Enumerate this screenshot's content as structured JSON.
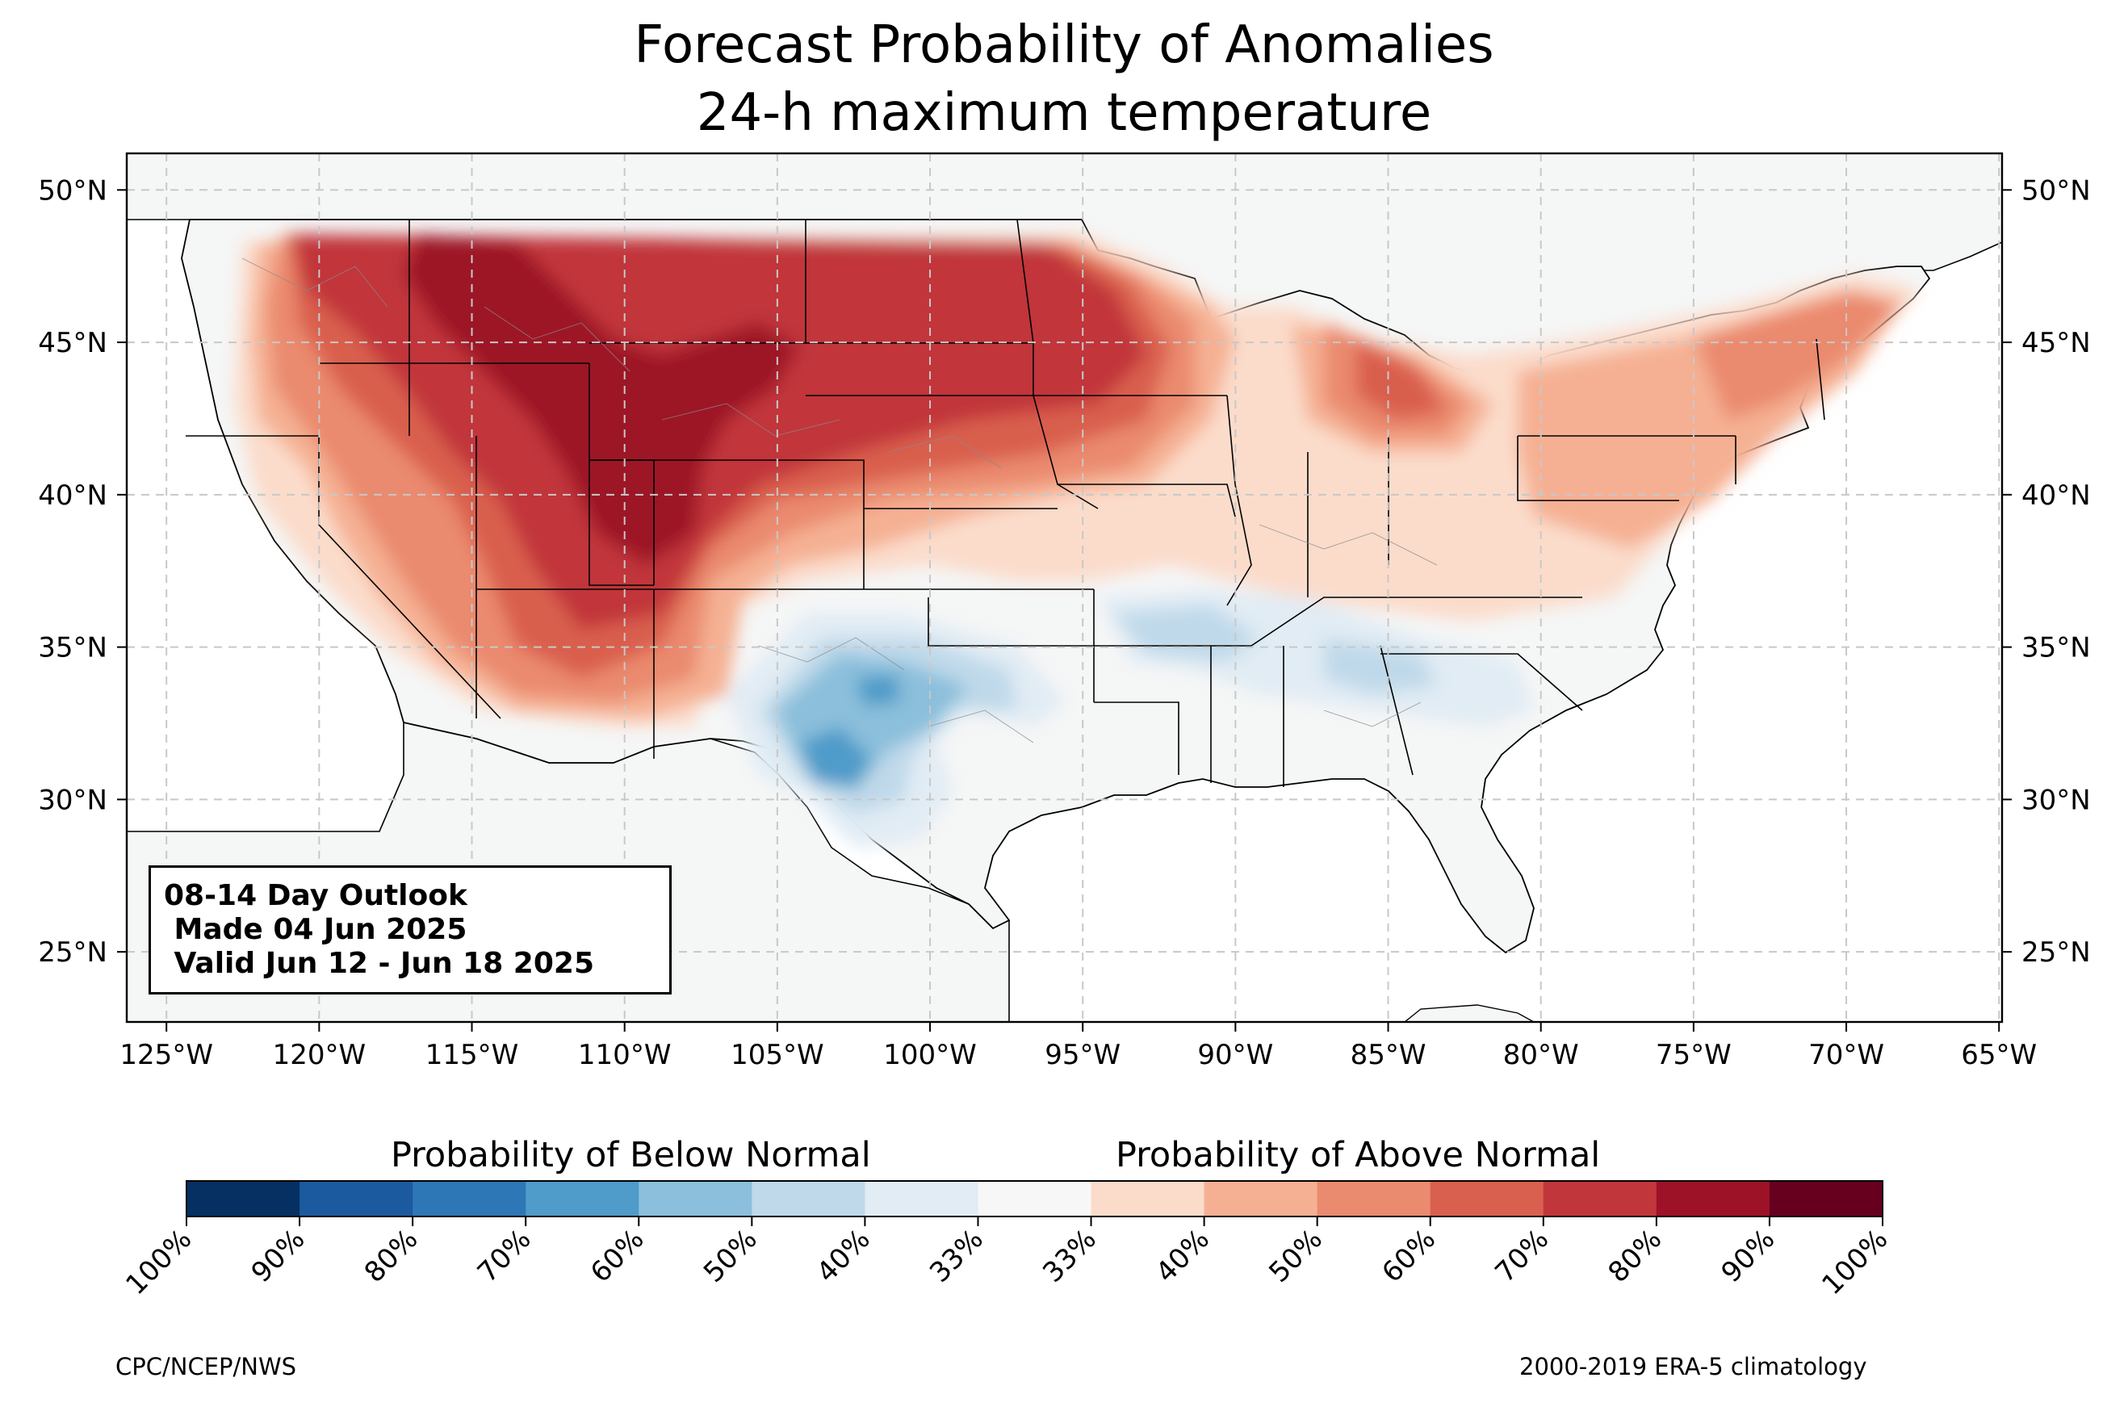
{
  "title": {
    "line1": "Forecast Probability of Anomalies",
    "line2": "24-h maximum temperature"
  },
  "map": {
    "projection": "plate-carree",
    "lon_range": [
      -126.3,
      -64.9
    ],
    "lat_range": [
      22.7,
      51.2
    ],
    "gridlines": "dashed",
    "lon_ticks": [
      "125°W",
      "120°W",
      "115°W",
      "110°W",
      "105°W",
      "100°W",
      "95°W",
      "90°W",
      "85°W",
      "80°W",
      "75°W",
      "70°W",
      "65°W"
    ],
    "lat_ticks": [
      "50°N",
      "45°N",
      "40°N",
      "35°N",
      "30°N",
      "25°N"
    ],
    "land_color": "#f5f6f6"
  },
  "info_box": {
    "line1": "08-14 Day Outlook",
    "line2": " Made 04 Jun 2025",
    "line3": " Valid Jun 12 - Jun 18 2025"
  },
  "colorbar": {
    "below_label": "Probability of Below Normal",
    "above_label": "Probability of Above Normal",
    "tick_labels": [
      "100%",
      "90%",
      "80%",
      "70%",
      "60%",
      "50%",
      "40%",
      "33%",
      "33%",
      "40%",
      "50%",
      "60%",
      "70%",
      "80%",
      "90%",
      "100%"
    ],
    "colors": [
      "#053061",
      "#1b5a9e",
      "#2e77b6",
      "#4f9bc9",
      "#8bbfdb",
      "#bfd9ea",
      "#e1ecf4",
      "#f7f7f7",
      "#fbdccb",
      "#f5b093",
      "#ea8a6e",
      "#d95f4e",
      "#c1363b",
      "#9d1227",
      "#67001f"
    ]
  },
  "footer": {
    "credit": "CPC/NCEP/NWS",
    "climatology": "2000-2019 ERA-5 climatology"
  },
  "chart_data": {
    "type": "filled-contour map",
    "title": "Forecast Probability of Anomalies 24-h maximum temperature",
    "regions": [
      {
        "area": "Northern Rockies / Northern Plains",
        "category": "above",
        "probability": "70-80%"
      },
      {
        "area": "Wyoming / Colorado / Utah core",
        "category": "above",
        "probability": "80-90%"
      },
      {
        "area": "Pacific Northwest",
        "category": "above",
        "probability": "60-80%"
      },
      {
        "area": "Great Basin / Southwest",
        "category": "above",
        "probability": "50-70%"
      },
      {
        "area": "Upper Midwest / Great Lakes",
        "category": "above",
        "probability": "50-70%"
      },
      {
        "area": "Mid-Atlantic / Northeast",
        "category": "above",
        "probability": "40-60%"
      },
      {
        "area": "Central Plains",
        "category": "above",
        "probability": "33-60%"
      },
      {
        "area": "Texas / Southern Plains",
        "category": "below",
        "probability": "40-70%"
      },
      {
        "area": "Mid-South / Tennessee Valley",
        "category": "below",
        "probability": "33-50%"
      },
      {
        "area": "Southeast Coast",
        "category": "near-normal",
        "probability": "33%"
      }
    ]
  }
}
